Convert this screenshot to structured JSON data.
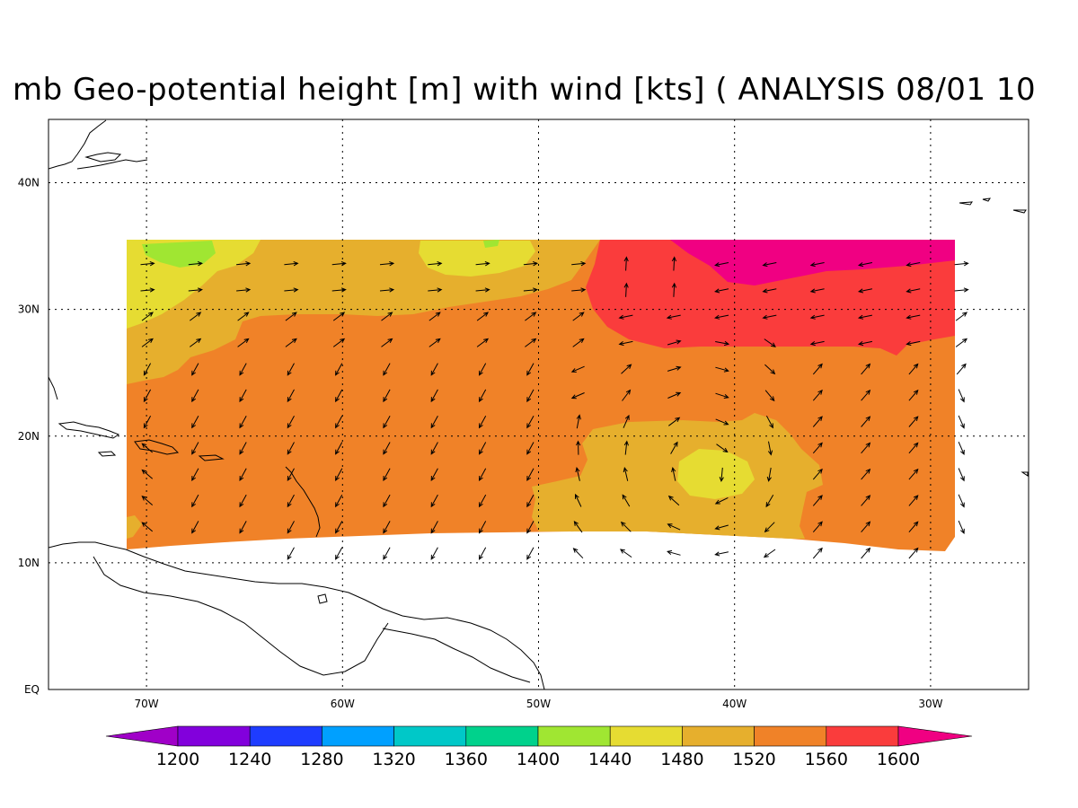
{
  "title": "mb Geo-potential height [m] with wind [kts] ( ANALYSIS 08/01 10",
  "map": {
    "lon_range": [
      -75,
      -25
    ],
    "lat_range": [
      0,
      45
    ],
    "lon_ticks": [
      {
        "value": -70,
        "label": "70W"
      },
      {
        "value": -60,
        "label": "60W"
      },
      {
        "value": -50,
        "label": "50W"
      },
      {
        "value": -40,
        "label": "40W"
      },
      {
        "value": -30,
        "label": "30W"
      }
    ],
    "lat_ticks": [
      {
        "value": 0,
        "label": "EQ"
      },
      {
        "value": 10,
        "label": "10N"
      },
      {
        "value": 20,
        "label": "20N"
      },
      {
        "value": 30,
        "label": "30N"
      },
      {
        "value": 40,
        "label": "40N"
      }
    ],
    "gridlines": "dotted"
  },
  "colorbar": {
    "levels": [
      "1200",
      "1240",
      "1280",
      "1320",
      "1360",
      "1400",
      "1440",
      "1480",
      "1520",
      "1560",
      "1600"
    ],
    "colors": [
      "#a000c8",
      "#8200dc",
      "#1e3cff",
      "#00a0ff",
      "#00c8c8",
      "#00d28c",
      "#a0e632",
      "#e6dc32",
      "#e6af2d",
      "#f08228",
      "#fa3c3c",
      "#f00082"
    ]
  }
}
